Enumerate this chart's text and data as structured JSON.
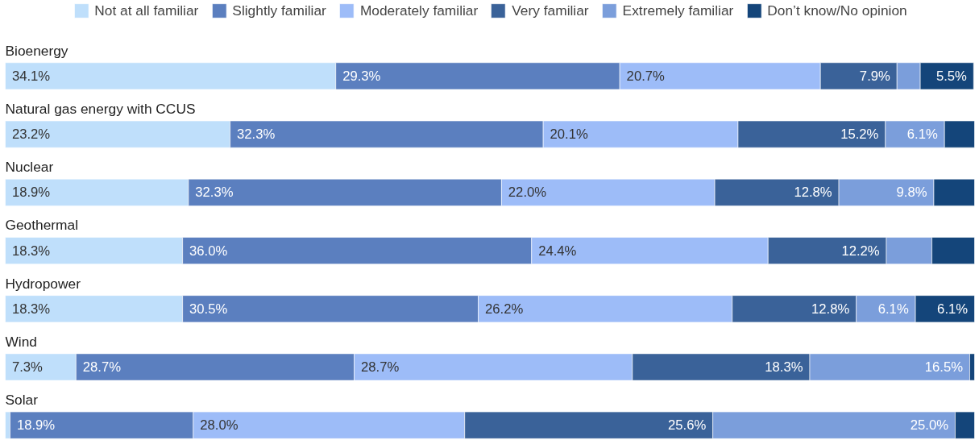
{
  "chart_data": {
    "type": "bar",
    "orientation": "horizontal",
    "stacked": true,
    "legend": "top",
    "categories": [
      "Bioenergy",
      "Natural gas energy with CCUS",
      "Nuclear",
      "Geothermal",
      "Hydropower",
      "Wind",
      "Solar"
    ],
    "series": [
      {
        "name": "Not at all familiar",
        "color": "#bfdffb",
        "values": [
          34.1,
          23.2,
          18.9,
          18.3,
          18.3,
          7.3,
          0.5
        ],
        "value_labels": [
          "34.1%",
          "23.2%",
          "18.9%",
          "18.3%",
          "18.3%",
          "7.3%",
          null
        ]
      },
      {
        "name": "Slightly familiar",
        "color": "#5b7fbf",
        "values": [
          29.3,
          32.3,
          32.3,
          36.0,
          30.5,
          28.7,
          18.9
        ],
        "value_labels": [
          "29.3%",
          "32.3%",
          "32.3%",
          "36.0%",
          "30.5%",
          "28.7%",
          "18.9%"
        ]
      },
      {
        "name": "Moderately familiar",
        "color": "#9dbcf8",
        "values": [
          20.7,
          20.1,
          22.0,
          24.4,
          26.2,
          28.7,
          28.0
        ],
        "value_labels": [
          "20.7%",
          "20.1%",
          "22.0%",
          "24.4%",
          "26.2%",
          "28.7%",
          "28.0%"
        ]
      },
      {
        "name": "Very familiar",
        "color": "#3a6299",
        "values": [
          7.9,
          15.2,
          12.8,
          12.2,
          12.8,
          18.3,
          25.6
        ],
        "value_labels": [
          "7.9%",
          "15.2%",
          "12.8%",
          "12.2%",
          "12.8%",
          "18.3%",
          "25.6%"
        ]
      },
      {
        "name": "Extremely familiar",
        "color": "#7b9edb",
        "values": [
          2.4,
          6.1,
          9.8,
          4.7,
          6.1,
          16.5,
          25.0
        ],
        "value_labels": [
          null,
          "6.1%",
          "9.8%",
          null,
          "6.1%",
          "16.5%",
          "25.0%"
        ]
      },
      {
        "name": "Don’t know/No opinion",
        "color": "#14457a",
        "values": [
          5.5,
          3.1,
          4.2,
          4.4,
          6.1,
          0.5,
          2.0
        ],
        "value_labels": [
          "5.5%",
          null,
          null,
          null,
          "6.1%",
          null,
          null
        ]
      }
    ]
  }
}
